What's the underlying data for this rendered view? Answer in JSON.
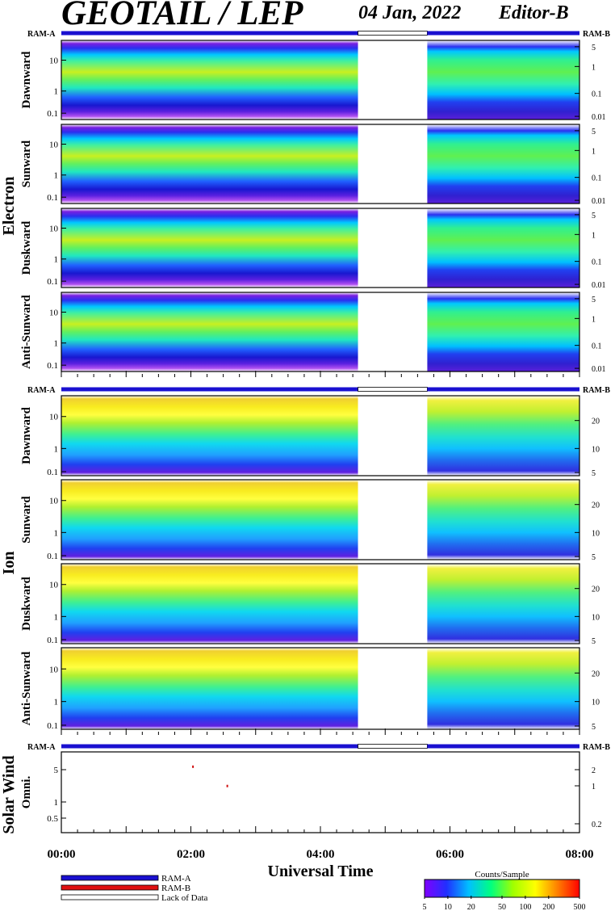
{
  "header": {
    "title": "GEOTAIL / LEP",
    "date": "04 Jan, 2022",
    "editor": "Editor-B"
  },
  "chart_data": {
    "type": "heatmap",
    "time_axis": {
      "label": "Universal Time",
      "ticks": [
        "00:00",
        "02:00",
        "04:00",
        "06:00",
        "08:00"
      ],
      "range_hours": [
        0,
        8
      ],
      "data_gap_hours": [
        4.58,
        5.65
      ]
    },
    "status_bar_labels": {
      "left": "RAM-A",
      "right": "RAM-B"
    },
    "groups": [
      {
        "name": "Electron",
        "left_ticks": [
          "0.1",
          "1",
          "10"
        ],
        "right_ticks": [
          "0.01",
          "0.1",
          "1",
          "5"
        ],
        "panels": [
          "Dawnward",
          "Sunward",
          "Duskward",
          "Anti-Sunward"
        ]
      },
      {
        "name": "Ion",
        "left_ticks": [
          "0.1",
          "1",
          "10"
        ],
        "right_ticks": [
          "5",
          "10",
          "20"
        ],
        "panels": [
          "Dawnward",
          "Sunward",
          "Duskward",
          "Anti-Sunward"
        ]
      },
      {
        "name": "Solar Wind",
        "left_ticks": [
          "0.5",
          "1",
          "5"
        ],
        "right_ticks": [
          "0.2",
          "1",
          "2"
        ],
        "panels": [
          "Omni."
        ],
        "points": [
          {
            "t": 2.02,
            "y": 4.6
          },
          {
            "t": 2.55,
            "y": 2.1
          }
        ]
      }
    ],
    "legend": {
      "ram_a": "RAM-A",
      "ram_b": "RAM-B",
      "lack": "Lack of Data",
      "colors": {
        "ram_a": "#1a10d0",
        "ram_b": "#e01010",
        "lack": "#ffffff"
      }
    },
    "colorbar": {
      "title": "Counts/Sample",
      "ticks": [
        "5",
        "10",
        "20",
        "50",
        "100",
        "200",
        "500"
      ],
      "colors": [
        "#8000ff",
        "#2030ff",
        "#00c0ff",
        "#00ff80",
        "#a0ff00",
        "#ffff00",
        "#ff8000",
        "#ff0000"
      ]
    }
  }
}
